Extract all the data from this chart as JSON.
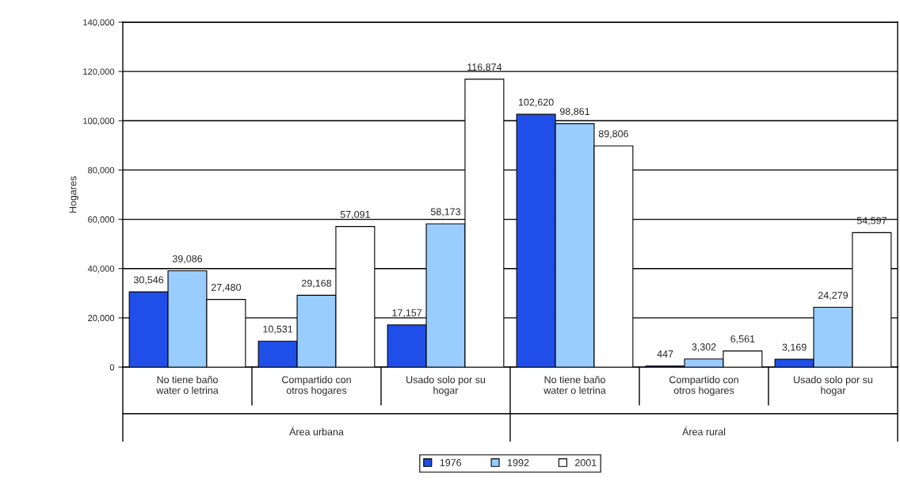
{
  "chart_data": {
    "type": "bar",
    "ylabel": "Hogares",
    "categories": [
      "No tiene baño\nwater o letrina",
      "Compartido con\notros hogares",
      "Usado solo por su\nhogar",
      "No tiene baño\nwater o letrina",
      "Compartido con\notros hogares",
      "Usado solo por su\nhogar"
    ],
    "series": [
      {
        "name": "1976",
        "color": "#1f4fe8",
        "values": [
          30546,
          10531,
          17157,
          102620,
          447,
          3169
        ],
        "value_labels": [
          "30,546",
          "10,531",
          "17,157",
          "102,620",
          "447",
          "3,169"
        ]
      },
      {
        "name": "1992",
        "color": "#99ccff",
        "values": [
          39086,
          29168,
          58173,
          98861,
          3302,
          24279
        ],
        "value_labels": [
          "39,086",
          "29,168",
          "58,173",
          "98,861",
          "3,302",
          "24,279"
        ]
      },
      {
        "name": "2001",
        "color": "#ffffff",
        "values": [
          27480,
          57091,
          116874,
          89806,
          6561,
          54597
        ],
        "value_labels": [
          "27,480",
          "57,091",
          "116,874",
          "89,806",
          "6,561",
          "54,597"
        ]
      }
    ],
    "annotations": [
      "Área urbana",
      "Área rural"
    ],
    "ylim": [
      0,
      140000
    ],
    "yticks": [
      {
        "value": 0,
        "label": "0"
      },
      {
        "value": 20000,
        "label": "20,000"
      },
      {
        "value": 40000,
        "label": "40,000"
      },
      {
        "value": 60000,
        "label": "60,000"
      },
      {
        "value": 80000,
        "label": "80,000"
      },
      {
        "value": 100000,
        "label": "100,000"
      },
      {
        "value": 120000,
        "label": "120,000"
      },
      {
        "value": 140000,
        "label": "140,000"
      }
    ],
    "grid": "y",
    "legend": "bottom"
  }
}
